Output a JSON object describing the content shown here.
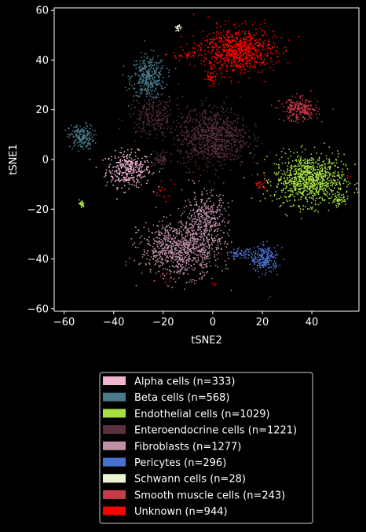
{
  "chart_data": {
    "type": "scatter",
    "title": "",
    "xlabel": "tSNE2",
    "ylabel": "tSNE1",
    "xlim": [
      -64,
      59
    ],
    "ylim": [
      -61,
      61
    ],
    "xticks": [
      -60,
      -40,
      -20,
      0,
      20,
      40
    ],
    "yticks": [
      -60,
      -40,
      -20,
      0,
      20,
      40,
      60
    ],
    "grid": false,
    "legend_position": "below",
    "background": "#000000",
    "series": [
      {
        "name": "Alpha cells (n=333)",
        "color": "#f0b4d0",
        "clusters": [
          {
            "cx": -34,
            "cy": -4,
            "sx": 4.5,
            "sy": 3.5,
            "n": 333
          }
        ]
      },
      {
        "name": "Beta cells (n=568)",
        "color": "#4a7a8c",
        "clusters": [
          {
            "cx": -26,
            "cy": 33,
            "sx": 3.5,
            "sy": 4.5,
            "n": 380
          },
          {
            "cx": -53,
            "cy": 9,
            "sx": 2.5,
            "sy": 2.5,
            "n": 188
          }
        ]
      },
      {
        "name": "Endothelial cells (n=1029)",
        "color": "#a8e040",
        "clusters": [
          {
            "cx": 39,
            "cy": -8,
            "sx": 7,
            "sy": 5,
            "n": 960
          },
          {
            "cx": 51,
            "cy": -16,
            "sx": 1.5,
            "sy": 1.2,
            "n": 45
          },
          {
            "cx": -53,
            "cy": -18,
            "sx": 0.6,
            "sy": 0.8,
            "n": 24
          }
        ]
      },
      {
        "name": "Enteroendocrine cells (n=1221)",
        "color": "#5a3040",
        "clusters": [
          {
            "cx": 0,
            "cy": 9,
            "sx": 7,
            "sy": 6,
            "n": 920
          },
          {
            "cx": -24,
            "cy": 17,
            "sx": 5,
            "sy": 4,
            "n": 240
          },
          {
            "cx": -21,
            "cy": 0,
            "sx": 1.8,
            "sy": 1.6,
            "n": 58
          },
          {
            "cx": 23,
            "cy": -55,
            "sx": 0.3,
            "sy": 0.5,
            "n": 3
          }
        ]
      },
      {
        "name": "Fibroblasts (n=1277)",
        "color": "#c090a8",
        "clusters": [
          {
            "cx": -13,
            "cy": -36,
            "sx": 8,
            "sy": 5.5,
            "n": 900
          },
          {
            "cx": -3,
            "cy": -24,
            "sx": 4.5,
            "sy": 5.5,
            "n": 377
          }
        ]
      },
      {
        "name": "Pericytes (n=296)",
        "color": "#4a70d0",
        "clusters": [
          {
            "cx": 21,
            "cy": -40,
            "sx": 2.8,
            "sy": 2.6,
            "n": 240
          },
          {
            "cx": 11,
            "cy": -38,
            "sx": 2.2,
            "sy": 1.0,
            "n": 56
          }
        ]
      },
      {
        "name": "Schwann cells (n=28)",
        "color": "#e8f5d0",
        "clusters": [
          {
            "cx": -14,
            "cy": 53,
            "sx": 0.4,
            "sy": 0.6,
            "n": 28
          }
        ]
      },
      {
        "name": "Smooth muscle cells (n=243)",
        "color": "#c83c48",
        "clusters": [
          {
            "cx": 35,
            "cy": 20,
            "sx": 3.8,
            "sy": 2.3,
            "n": 243
          }
        ]
      },
      {
        "name": "Unknown (n=944)",
        "color": "#ff0000",
        "clusters": [
          {
            "cx": 10,
            "cy": 44,
            "sx": 7.5,
            "sy": 4.5,
            "n": 820
          },
          {
            "cx": -1,
            "cy": 33,
            "sx": 1.3,
            "sy": 1.6,
            "n": 40
          },
          {
            "cx": -11,
            "cy": 42,
            "sx": 2.5,
            "sy": 0.8,
            "n": 32
          },
          {
            "cx": 19,
            "cy": -10,
            "sx": 1.0,
            "sy": 0.8,
            "n": 20
          },
          {
            "cx": -19,
            "cy": -12,
            "sx": 3.0,
            "sy": 3.0,
            "n": 16
          },
          {
            "cx": -18,
            "cy": -48,
            "sx": 2.0,
            "sy": 1.0,
            "n": 8
          },
          {
            "cx": 55,
            "cy": -7,
            "sx": 0.5,
            "sy": 0.5,
            "n": 4
          },
          {
            "cx": 0,
            "cy": -50,
            "sx": 0.5,
            "sy": 0.5,
            "n": 4
          }
        ]
      }
    ]
  }
}
